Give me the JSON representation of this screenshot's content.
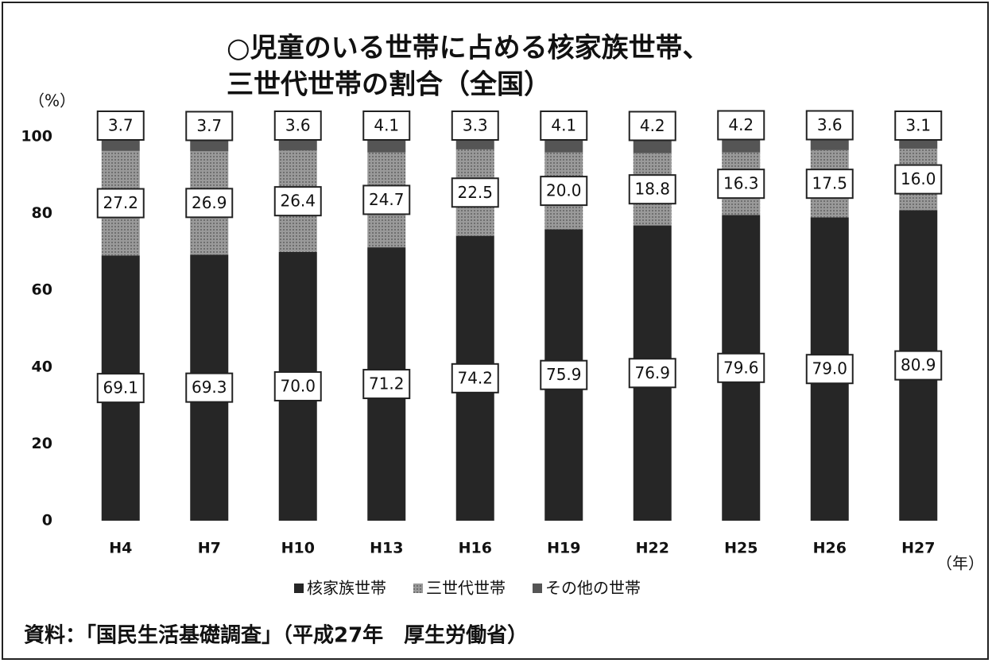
{
  "chart_data": {
    "type": "stacked_bar",
    "title": [
      "○児童のいる世帯に占める核家族世帯、",
      "三世代世帯の割合（全国）"
    ],
    "y_label": "（%）",
    "x_label": "（年）",
    "source": "資料：「国民生活基礎調査」（平成27年　厚生労働省）",
    "categories": [
      "H4",
      "H7",
      "H10",
      "H13",
      "H16",
      "H19",
      "H22",
      "H25",
      "H26",
      "H27"
    ],
    "series": [
      {
        "name": "核家族世帯",
        "color": "#262626",
        "values": [
          69.1,
          69.3,
          70.0,
          71.2,
          74.2,
          75.9,
          76.9,
          79.6,
          79.0,
          80.9
        ],
        "value_labels": [
          "69.1",
          "69.3",
          "70.0",
          "71.2",
          "74.2",
          "75.9",
          "76.9",
          "79.6",
          "79.0",
          "80.9"
        ]
      },
      {
        "name": "三世代世帯",
        "color": "#9a9a9a",
        "values": [
          27.2,
          26.9,
          26.4,
          24.7,
          22.5,
          20.0,
          18.8,
          16.3,
          17.5,
          16.0
        ],
        "value_labels": [
          "27.2",
          "26.9",
          "26.4",
          "24.7",
          "22.5",
          "20.0",
          "18.8",
          "16.3",
          "17.5",
          "16.0"
        ]
      },
      {
        "name": "その他の世帯",
        "color": "#555555",
        "values": [
          3.7,
          3.7,
          3.6,
          4.1,
          3.3,
          4.1,
          4.2,
          4.2,
          3.6,
          3.1
        ],
        "value_labels": [
          "3.7",
          "3.7",
          "3.6",
          "4.1",
          "3.3",
          "4.1",
          "4.2",
          "4.2",
          "3.6",
          "3.1"
        ]
      }
    ],
    "ylim": [
      0,
      100
    ],
    "yticks": [
      0,
      20,
      40,
      60,
      80,
      100
    ],
    "grid": false,
    "legend": "bottom"
  }
}
